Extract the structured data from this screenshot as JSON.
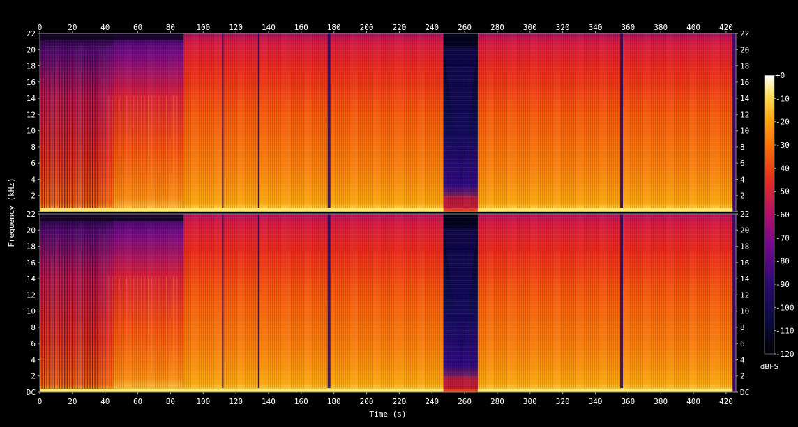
{
  "chart_data": {
    "type": "heatmap",
    "title": "",
    "xlabel": "Time (s)",
    "ylabel": "Frequency (kHz)",
    "x_range": [
      0,
      426
    ],
    "y_range_khz": [
      0,
      22
    ],
    "x_ticks": [
      0,
      20,
      40,
      60,
      80,
      100,
      120,
      140,
      160,
      180,
      200,
      220,
      240,
      260,
      280,
      300,
      320,
      340,
      360,
      380,
      400,
      420
    ],
    "y_ticks": [
      {
        "value": 0,
        "label": "DC"
      },
      {
        "value": 2,
        "label": "2"
      },
      {
        "value": 4,
        "label": "4"
      },
      {
        "value": 6,
        "label": "6"
      },
      {
        "value": 8,
        "label": "8"
      },
      {
        "value": 10,
        "label": "10"
      },
      {
        "value": 12,
        "label": "12"
      },
      {
        "value": 14,
        "label": "14"
      },
      {
        "value": 16,
        "label": "16"
      },
      {
        "value": 18,
        "label": "18"
      },
      {
        "value": 20,
        "label": "20"
      },
      {
        "value": 22,
        "label": "22"
      }
    ],
    "channels": 2,
    "colorbar": {
      "label": "dBFS",
      "range": [
        -120,
        0
      ],
      "ticks": [
        "+0",
        "-10",
        "-20",
        "-30",
        "-40",
        "-50",
        "-60",
        "-70",
        "-80",
        "-90",
        "-100",
        "-110",
        "-120"
      ]
    },
    "segments": [
      {
        "start": 0,
        "end": 45,
        "level": "sparse transients, red/orange"
      },
      {
        "start": 45,
        "end": 88,
        "level": "dense orange with dark purple top"
      },
      {
        "start": 88,
        "end": 247,
        "level": "loud orange, red top"
      },
      {
        "start": 247,
        "end": 268,
        "level": "quiet section, dark blue"
      },
      {
        "start": 268,
        "end": 424,
        "level": "loud orange, red top"
      }
    ],
    "dropouts": [
      112,
      134,
      177,
      356
    ]
  }
}
